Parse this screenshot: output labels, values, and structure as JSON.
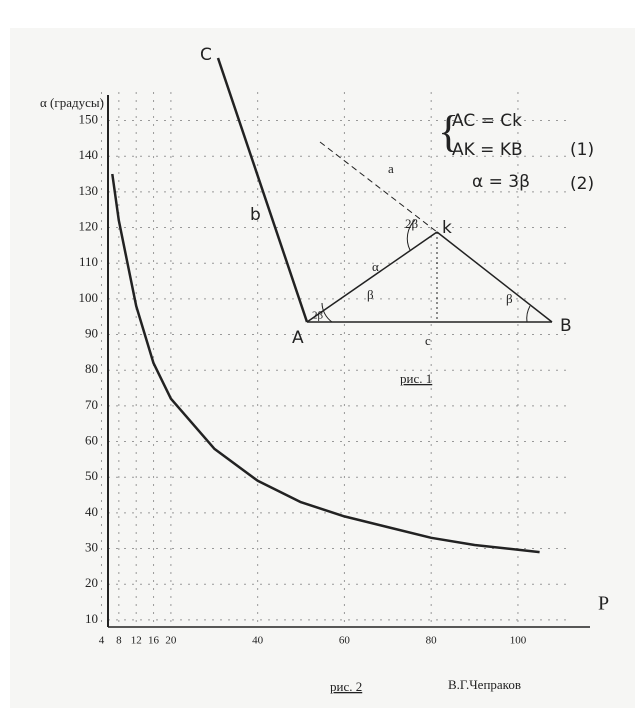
{
  "chart_data": {
    "type": "line",
    "y_label": "α (градусы)",
    "x_label": "P",
    "x": [
      6.5,
      8,
      12,
      16,
      20,
      30,
      40,
      50,
      60,
      70,
      80,
      90,
      105
    ],
    "values": [
      135,
      122,
      98,
      82,
      72,
      58,
      49,
      43,
      39,
      36,
      33,
      31,
      29
    ],
    "color": "#222",
    "xlim": [
      5.5,
      112
    ],
    "xticks": [
      4,
      8,
      12,
      16,
      20,
      40,
      60,
      80,
      100
    ],
    "ylim": [
      8,
      158
    ],
    "yticks": [
      10,
      20,
      30,
      40,
      50,
      60,
      70,
      80,
      90,
      100,
      110,
      120,
      130,
      140,
      150
    ],
    "grid": true,
    "caption": "рис. 2",
    "author": "В.Г.Чепраков"
  },
  "diagram": {
    "points": {
      "C": "C",
      "A": "A",
      "B": "B",
      "K": "k"
    },
    "sides": {
      "b": "b",
      "a": "a",
      "c": "c"
    },
    "angles": [
      "2β",
      "α",
      "β",
      "β",
      "2β"
    ],
    "equations": [
      "AC = Ck",
      "AK = KB",
      "(1)",
      "α = 3β",
      "(2)"
    ],
    "caption": "рис. 1"
  }
}
